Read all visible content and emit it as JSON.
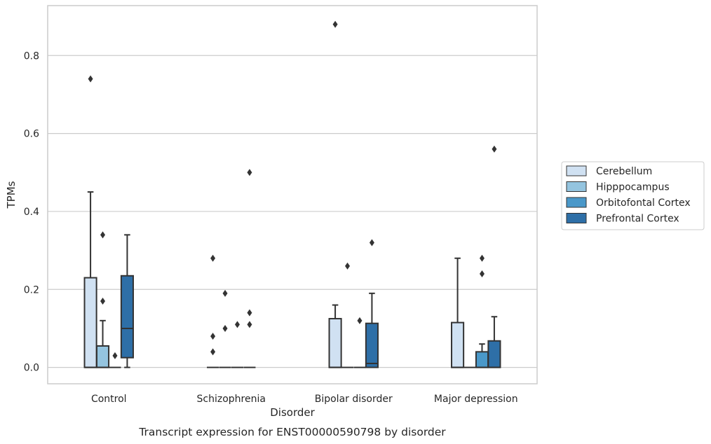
{
  "chart_data": {
    "type": "boxplot",
    "title": "",
    "caption": "Transcript expression for ENST00000590798 by disorder",
    "xlabel": "Disorder",
    "ylabel": "TPMs",
    "ylim": [
      -0.042,
      0.928
    ],
    "yticks": [
      "0.0",
      "0.2",
      "0.4",
      "0.6",
      "0.8"
    ],
    "ytick_values": [
      0,
      0.2,
      0.4,
      0.6,
      0.8
    ],
    "categories": [
      "Control",
      "Schizophrenia",
      "Bipolar disorder",
      "Major depression"
    ],
    "grid": "horizontal",
    "legend_position": "right",
    "series": [
      {
        "name": "Cerebellum",
        "color": "#d0e1f2",
        "boxes": [
          {
            "min": 0,
            "q1": 0,
            "median": 0,
            "q3": 0.23,
            "max": 0.45,
            "outliers": [
              0.74
            ]
          },
          {
            "min": 0,
            "q1": 0,
            "median": 0,
            "q3": 0,
            "max": 0,
            "outliers": [
              0.04,
              0.08,
              0.28
            ]
          },
          {
            "min": 0,
            "q1": 0,
            "median": 0,
            "q3": 0.125,
            "max": 0.16,
            "outliers": [
              0.88
            ]
          },
          {
            "min": 0,
            "q1": 0,
            "median": 0,
            "q3": 0.115,
            "max": 0.28,
            "outliers": []
          }
        ]
      },
      {
        "name": "Hipppocampus",
        "color": "#94c4df",
        "boxes": [
          {
            "min": 0,
            "q1": 0,
            "median": 0,
            "q3": 0.055,
            "max": 0.12,
            "outliers": [
              0.17,
              0.34
            ]
          },
          {
            "min": 0,
            "q1": 0,
            "median": 0,
            "q3": 0,
            "max": 0,
            "outliers": [
              0.1,
              0.19
            ]
          },
          {
            "min": 0,
            "q1": 0,
            "median": 0,
            "q3": 0,
            "max": 0,
            "outliers": [
              0.26
            ]
          },
          {
            "min": 0,
            "q1": 0,
            "median": 0,
            "q3": 0,
            "max": 0,
            "outliers": []
          }
        ]
      },
      {
        "name": "Orbitofontal Cortex",
        "color": "#4a98c9",
        "boxes": [
          {
            "min": 0,
            "q1": 0,
            "median": 0,
            "q3": 0,
            "max": 0,
            "outliers": [
              0.03
            ]
          },
          {
            "min": 0,
            "q1": 0,
            "median": 0,
            "q3": 0,
            "max": 0,
            "outliers": [
              0.11
            ]
          },
          {
            "min": 0,
            "q1": 0,
            "median": 0,
            "q3": 0,
            "max": 0,
            "outliers": [
              0.12
            ]
          },
          {
            "min": 0,
            "q1": 0,
            "median": 0,
            "q3": 0.04,
            "max": 0.06,
            "outliers": [
              0.24,
              0.28
            ]
          }
        ]
      },
      {
        "name": "Prefrontal Cortex",
        "color": "#2e6fa7",
        "boxes": [
          {
            "min": 0,
            "q1": 0.025,
            "median": 0.1,
            "q3": 0.235,
            "max": 0.34,
            "outliers": []
          },
          {
            "min": 0,
            "q1": 0,
            "median": 0,
            "q3": 0,
            "max": 0,
            "outliers": [
              0.11,
              0.14,
              0.5
            ]
          },
          {
            "min": 0,
            "q1": 0,
            "median": 0.01,
            "q3": 0.113,
            "max": 0.19,
            "outliers": [
              0.32
            ]
          },
          {
            "min": 0,
            "q1": 0,
            "median": 0,
            "q3": 0.068,
            "max": 0.13,
            "outliers": [
              0.56
            ]
          }
        ]
      }
    ]
  }
}
